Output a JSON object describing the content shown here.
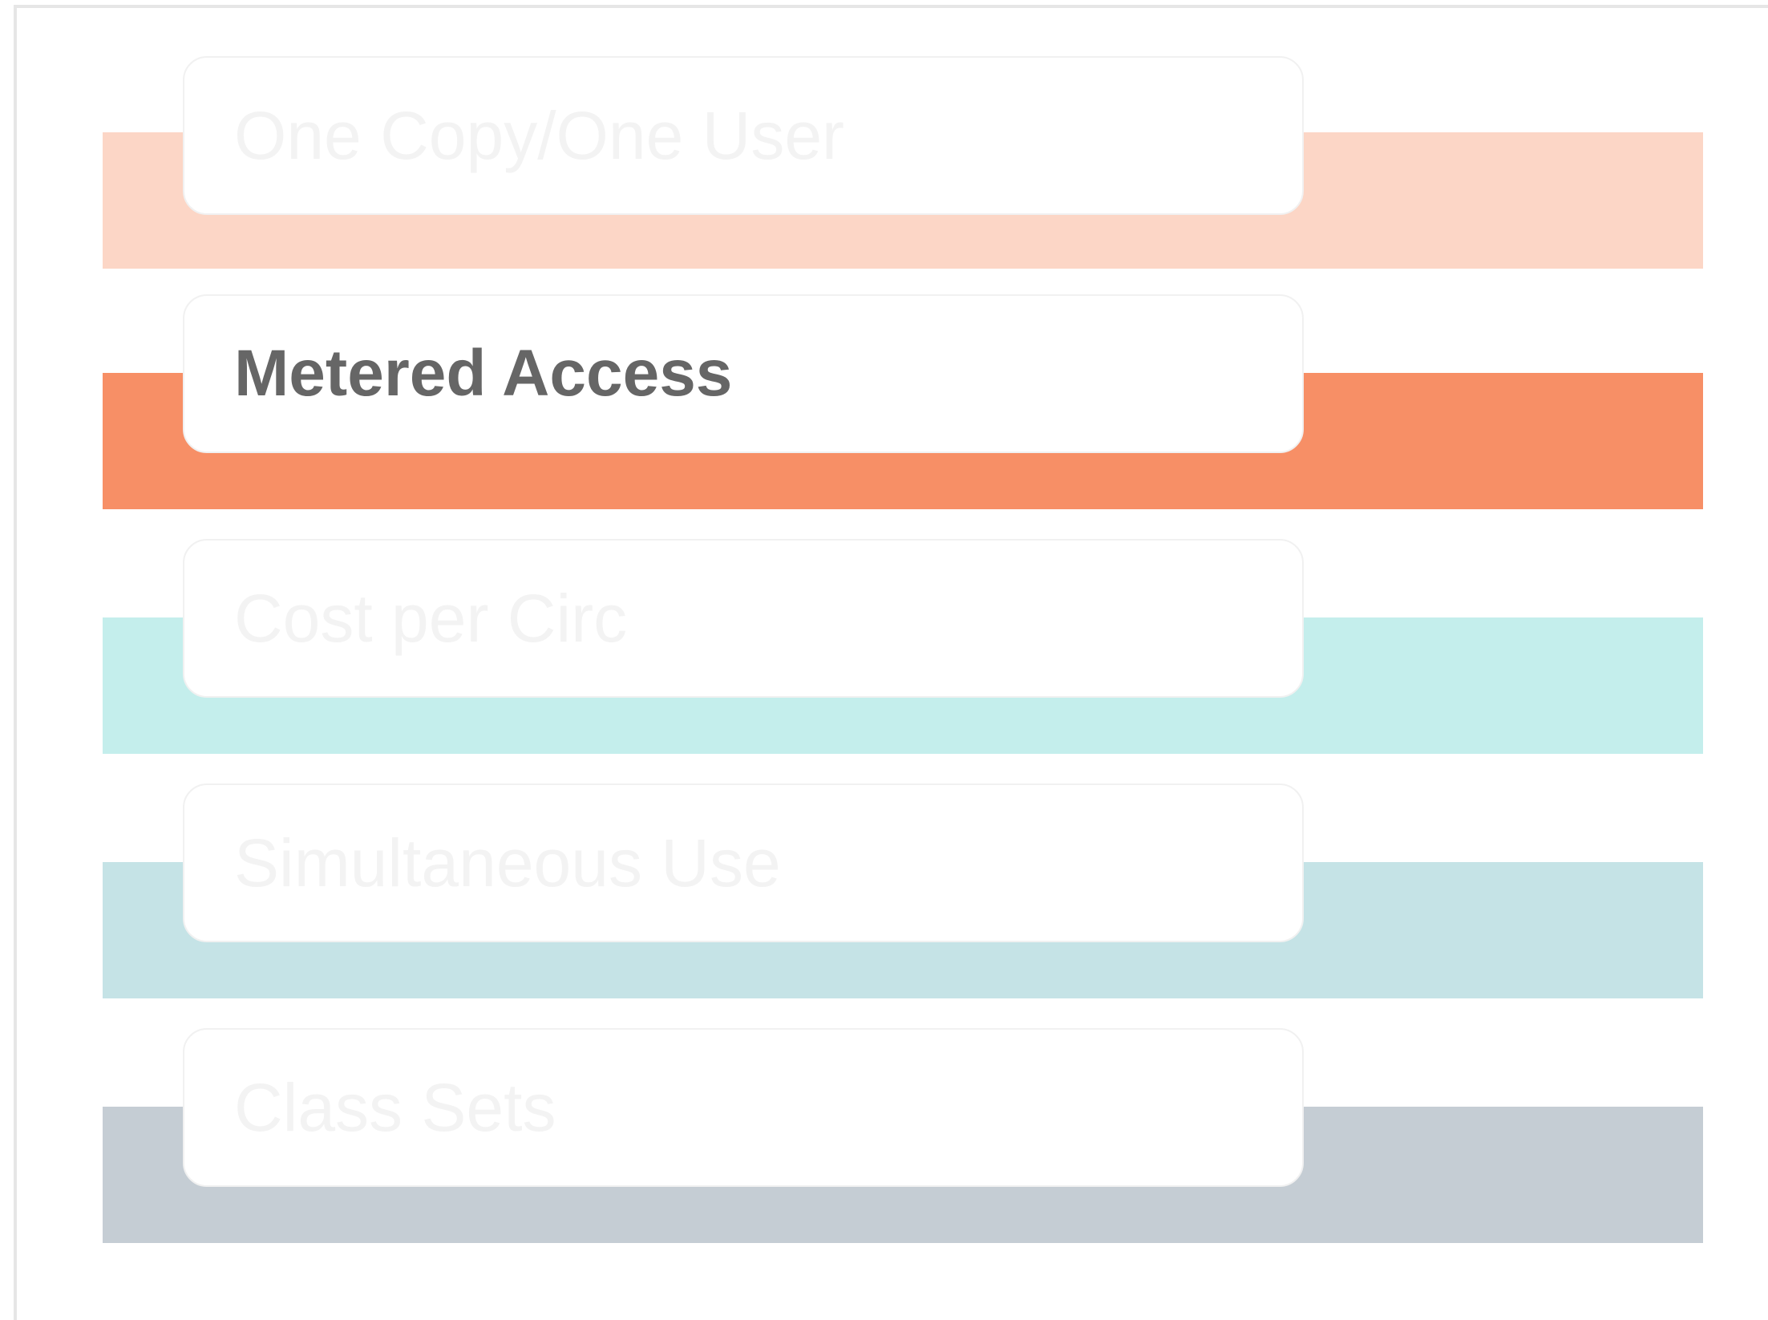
{
  "models": [
    {
      "label": "One Copy/One User",
      "color": "#fcd6c6",
      "active": false
    },
    {
      "label": "Metered Access",
      "color": "#f78f66",
      "active": true
    },
    {
      "label": "Cost per Circ",
      "color": "#c4eeec",
      "active": false
    },
    {
      "label": "Simultaneous Use",
      "color": "#c5e3e6",
      "active": false
    },
    {
      "label": "Class Sets",
      "color": "#c5cdd4",
      "active": false
    }
  ]
}
